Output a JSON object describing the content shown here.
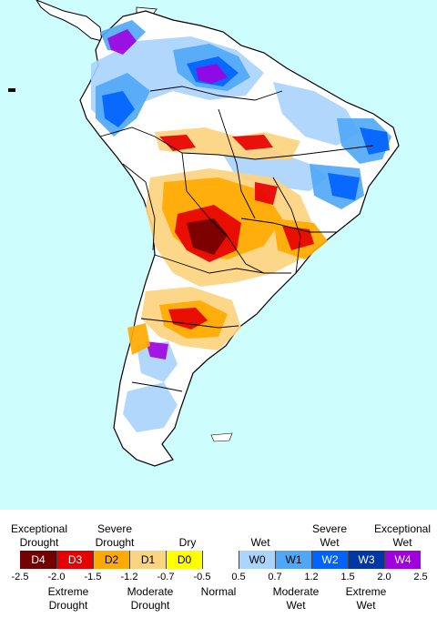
{
  "legend": {
    "categories": [
      {
        "code": "D4",
        "color": "#730000",
        "text_color": "#ffffff"
      },
      {
        "code": "D3",
        "color": "#e60000",
        "text_color": "#ffffff"
      },
      {
        "code": "D2",
        "color": "#ffaa00",
        "text_color": "#000000"
      },
      {
        "code": "D1",
        "color": "#fcd37f",
        "text_color": "#000000"
      },
      {
        "code": "D0",
        "color": "#ffff00",
        "text_color": "#000000"
      },
      {
        "code": "",
        "color": "#ffffff",
        "text_color": "#000000"
      },
      {
        "code": "W0",
        "color": "#aad3fd",
        "text_color": "#000000"
      },
      {
        "code": "W1",
        "color": "#4fa7f7",
        "text_color": "#000000"
      },
      {
        "code": "W2",
        "color": "#0062ff",
        "text_color": "#ffffff"
      },
      {
        "code": "W3",
        "color": "#0037a6",
        "text_color": "#ffffff"
      },
      {
        "code": "W4",
        "color": "#a000e0",
        "text_color": "#ffffff"
      }
    ],
    "ticks": [
      "-2.5",
      "-2.0",
      "-1.5",
      "-1.2",
      "-0.7",
      "-0.5",
      "0.5",
      "0.7",
      "1.2",
      "1.5",
      "2.0",
      "2.5"
    ],
    "top_labels": {
      "exceptional_drought": "Exceptional\nDrought",
      "severe_drought": "Severe\nDrought",
      "dry": "Dry",
      "wet": "Wet",
      "severe_wet": "Severe\nWet",
      "exceptional_wet": "Exceptional\nWet"
    },
    "bottom_labels": {
      "extreme_drought": "Extreme\nDrought",
      "moderate_drought": "Moderate\nDrought",
      "normal": "Normal",
      "moderate_wet": "Moderate\nWet",
      "extreme_wet": "Extreme\nWet"
    }
  },
  "map": {
    "ocean_color": "#cdfdfd",
    "land_color": "#ffffff",
    "border_color": "#000000"
  }
}
